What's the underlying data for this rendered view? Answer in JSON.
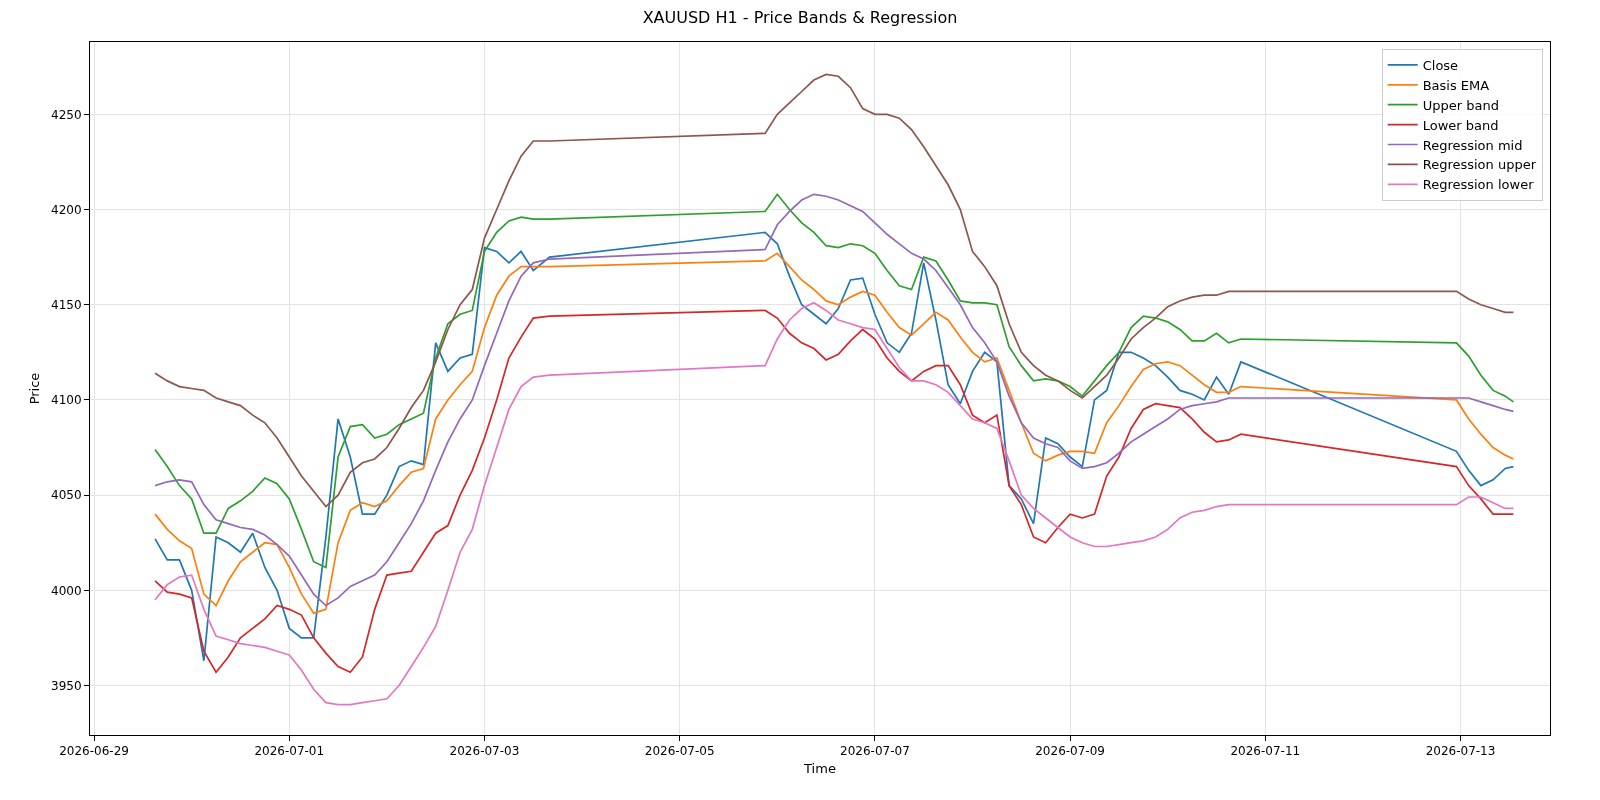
{
  "chart_data": {
    "type": "line",
    "title": "XAUUSD H1 - Price Bands & Regression",
    "xlabel": "Time",
    "ylabel": "Price",
    "x": [
      "2026-06-29T15:00",
      "2026-06-29T18:00",
      "2026-06-29T21:00",
      "2026-06-30T00:00",
      "2026-06-30T03:00",
      "2026-06-30T06:00",
      "2026-06-30T09:00",
      "2026-06-30T12:00",
      "2026-06-30T15:00",
      "2026-06-30T18:00",
      "2026-06-30T21:00",
      "2026-07-01T00:00",
      "2026-07-01T03:00",
      "2026-07-01T06:00",
      "2026-07-01T09:00",
      "2026-07-01T12:00",
      "2026-07-01T15:00",
      "2026-07-01T18:00",
      "2026-07-01T21:00",
      "2026-07-02T00:00",
      "2026-07-02T03:00",
      "2026-07-02T06:00",
      "2026-07-02T09:00",
      "2026-07-02T12:00",
      "2026-07-02T15:00",
      "2026-07-02T18:00",
      "2026-07-02T21:00",
      "2026-07-03T00:00",
      "2026-07-03T03:00",
      "2026-07-03T06:00",
      "2026-07-03T09:00",
      "2026-07-03T12:00",
      "2026-07-03T16:00",
      "2026-07-05T21:00",
      "2026-07-06T00:00",
      "2026-07-06T03:00",
      "2026-07-06T06:00",
      "2026-07-06T09:00",
      "2026-07-06T12:00",
      "2026-07-06T15:00",
      "2026-07-06T18:00",
      "2026-07-06T21:00",
      "2026-07-07T00:00",
      "2026-07-07T03:00",
      "2026-07-07T06:00",
      "2026-07-07T09:00",
      "2026-07-07T12:00",
      "2026-07-07T15:00",
      "2026-07-07T18:00",
      "2026-07-07T21:00",
      "2026-07-08T00:00",
      "2026-07-08T03:00",
      "2026-07-08T06:00",
      "2026-07-08T09:00",
      "2026-07-08T12:00",
      "2026-07-08T15:00",
      "2026-07-08T18:00",
      "2026-07-08T21:00",
      "2026-07-09T00:00",
      "2026-07-09T03:00",
      "2026-07-09T06:00",
      "2026-07-09T09:00",
      "2026-07-09T12:00",
      "2026-07-09T15:00",
      "2026-07-09T18:00",
      "2026-07-09T21:00",
      "2026-07-10T00:00",
      "2026-07-10T03:00",
      "2026-07-10T06:00",
      "2026-07-10T09:00",
      "2026-07-10T12:00",
      "2026-07-10T15:00",
      "2026-07-10T18:00",
      "2026-07-12T23:00",
      "2026-07-13T02:00",
      "2026-07-13T05:00",
      "2026-07-13T08:00",
      "2026-07-13T11:00",
      "2026-07-13T13:00"
    ],
    "series": [
      {
        "name": "Close",
        "color": "#1f77b4",
        "values": [
          4027,
          4016,
          4016,
          4000,
          3963,
          4028,
          4025,
          4020,
          4030,
          4012,
          4000,
          3980,
          3975,
          3975,
          4028,
          4090,
          4070,
          4040,
          4040,
          4050,
          4065,
          4068,
          4066,
          4130,
          4115,
          4122,
          4124,
          4180,
          4178,
          4172,
          4178,
          4168,
          4175,
          4188,
          4182,
          4165,
          4150,
          4145,
          4140,
          4148,
          4163,
          4164,
          4145,
          4130,
          4125,
          4135,
          4172,
          4142,
          4108,
          4098,
          4115,
          4125,
          4120,
          4055,
          4048,
          4035,
          4080,
          4077,
          4070,
          4065,
          4100,
          4105,
          4125,
          4125,
          4122,
          4118,
          4112,
          4105,
          4103,
          4100,
          4112,
          4103,
          4120,
          4073,
          4063,
          4055,
          4058,
          4064,
          4065
        ]
      },
      {
        "name": "Basis EMA",
        "color": "#ff7f0e",
        "values": [
          4040,
          4032,
          4026,
          4022,
          3998,
          3992,
          4005,
          4015,
          4020,
          4025,
          4024,
          4012,
          3998,
          3988,
          3990,
          4025,
          4042,
          4046,
          4044,
          4047,
          4055,
          4062,
          4064,
          4090,
          4100,
          4108,
          4115,
          4138,
          4155,
          4165,
          4170,
          4170,
          4170,
          4173,
          4177,
          4170,
          4163,
          4158,
          4152,
          4150,
          4154,
          4157,
          4155,
          4146,
          4138,
          4134,
          4140,
          4146,
          4142,
          4133,
          4125,
          4120,
          4122,
          4105,
          4088,
          4072,
          4068,
          4071,
          4073,
          4073,
          4072,
          4088,
          4097,
          4107,
          4116,
          4119,
          4120,
          4118,
          4113,
          4108,
          4104,
          4104,
          4107,
          4100,
          4090,
          4082,
          4075,
          4071,
          4069
        ]
      },
      {
        "name": "Upper band",
        "color": "#2ca02c",
        "values": [
          4074,
          4065,
          4055,
          4048,
          4030,
          4030,
          4043,
          4047,
          4052,
          4059,
          4056,
          4048,
          4032,
          4015,
          4012,
          4070,
          4086,
          4087,
          4080,
          4082,
          4087,
          4090,
          4093,
          4122,
          4140,
          4145,
          4147,
          4178,
          4188,
          4194,
          4196,
          4195,
          4195,
          4199,
          4208,
          4200,
          4193,
          4188,
          4181,
          4180,
          4182,
          4181,
          4177,
          4168,
          4160,
          4158,
          4175,
          4173,
          4163,
          4152,
          4151,
          4151,
          4150,
          4128,
          4118,
          4110,
          4111,
          4110,
          4107,
          4102,
          4110,
          4118,
          4125,
          4138,
          4144,
          4143,
          4141,
          4137,
          4131,
          4131,
          4135,
          4130,
          4132,
          4130,
          4123,
          4113,
          4105,
          4102,
          4099
        ]
      },
      {
        "name": "Lower band",
        "color": "#d62728",
        "values": [
          4005,
          3999,
          3998,
          3996,
          3968,
          3957,
          3965,
          3975,
          3980,
          3985,
          3992,
          3990,
          3987,
          3975,
          3967,
          3960,
          3957,
          3965,
          3990,
          4008,
          4009,
          4010,
          4020,
          4030,
          4034,
          4050,
          4063,
          4080,
          4100,
          4122,
          4133,
          4143,
          4144,
          4147,
          4143,
          4135,
          4130,
          4127,
          4121,
          4124,
          4131,
          4137,
          4132,
          4122,
          4115,
          4110,
          4115,
          4118,
          4118,
          4108,
          4092,
          4088,
          4092,
          4055,
          4045,
          4028,
          4025,
          4033,
          4040,
          4038,
          4040,
          4060,
          4070,
          4085,
          4095,
          4098,
          4097,
          4096,
          4090,
          4083,
          4078,
          4079,
          4082,
          4065,
          4055,
          4048,
          4040,
          4040,
          4040
        ]
      },
      {
        "name": "Regression mid",
        "color": "#9467bd",
        "values": [
          4055,
          4057,
          4058,
          4057,
          4045,
          4037,
          4035,
          4033,
          4032,
          4029,
          4024,
          4018,
          4008,
          3998,
          3992,
          3996,
          4002,
          4005,
          4008,
          4015,
          4025,
          4035,
          4047,
          4063,
          4078,
          4090,
          4100,
          4118,
          4135,
          4152,
          4165,
          4172,
          4174,
          4179,
          4192,
          4199,
          4205,
          4208,
          4207,
          4205,
          4202,
          4199,
          4193,
          4187,
          4182,
          4177,
          4174,
          4168,
          4159,
          4150,
          4138,
          4130,
          4120,
          4102,
          4088,
          4080,
          4077,
          4075,
          4068,
          4064,
          4065,
          4067,
          4072,
          4078,
          4082,
          4086,
          4090,
          4095,
          4097,
          4098,
          4099,
          4101,
          4101,
          4101,
          4101,
          4099,
          4097,
          4095,
          4094
        ]
      },
      {
        "name": "Regression upper",
        "color": "#8c564b",
        "values": [
          4114,
          4110,
          4107,
          4106,
          4105,
          4101,
          4099,
          4097,
          4092,
          4088,
          4080,
          4070,
          4060,
          4052,
          4044,
          4050,
          4062,
          4067,
          4069,
          4075,
          4085,
          4096,
          4105,
          4120,
          4137,
          4150,
          4158,
          4185,
          4200,
          4215,
          4228,
          4236,
          4236,
          4240,
          4250,
          4256,
          4262,
          4268,
          4271,
          4270,
          4264,
          4253,
          4250,
          4250,
          4248,
          4242,
          4233,
          4223,
          4213,
          4200,
          4178,
          4170,
          4160,
          4140,
          4125,
          4118,
          4113,
          4110,
          4105,
          4101,
          4107,
          4113,
          4122,
          4132,
          4138,
          4143,
          4149,
          4152,
          4154,
          4155,
          4155,
          4157,
          4157,
          4157,
          4153,
          4150,
          4148,
          4146,
          4146
        ]
      },
      {
        "name": "Regression lower",
        "color": "#e377c2",
        "values": [
          3995,
          4003,
          4007,
          4008,
          3990,
          3976,
          3974,
          3972,
          3971,
          3970,
          3968,
          3966,
          3958,
          3948,
          3941,
          3940,
          3940,
          3941,
          3942,
          3943,
          3950,
          3960,
          3970,
          3981,
          4000,
          4020,
          4032,
          4055,
          4075,
          4095,
          4107,
          4112,
          4113,
          4118,
          4132,
          4142,
          4148,
          4151,
          4147,
          4142,
          4140,
          4138,
          4137,
          4127,
          4117,
          4110,
          4110,
          4108,
          4104,
          4097,
          4090,
          4088,
          4085,
          4068,
          4050,
          4043,
          4038,
          4033,
          4028,
          4025,
          4023,
          4023,
          4024,
          4025,
          4026,
          4028,
          4032,
          4038,
          4041,
          4042,
          4044,
          4045,
          4045,
          4045,
          4049,
          4049,
          4046,
          4043,
          4043
        ]
      }
    ],
    "xlim": [
      "2026-06-28T23:00",
      "2026-07-13T22:00"
    ],
    "xticks": [
      "2026-06-29",
      "2026-07-01",
      "2026-07-03",
      "2026-07-05",
      "2026-07-07",
      "2026-07-09",
      "2026-07-11",
      "2026-07-13"
    ],
    "ylim": [
      3924,
      4288
    ],
    "yticks": [
      3950,
      4000,
      4050,
      4100,
      4150,
      4200,
      4250
    ],
    "grid": true,
    "legend": "top right",
    "marker": "none",
    "line_style": "solid"
  }
}
